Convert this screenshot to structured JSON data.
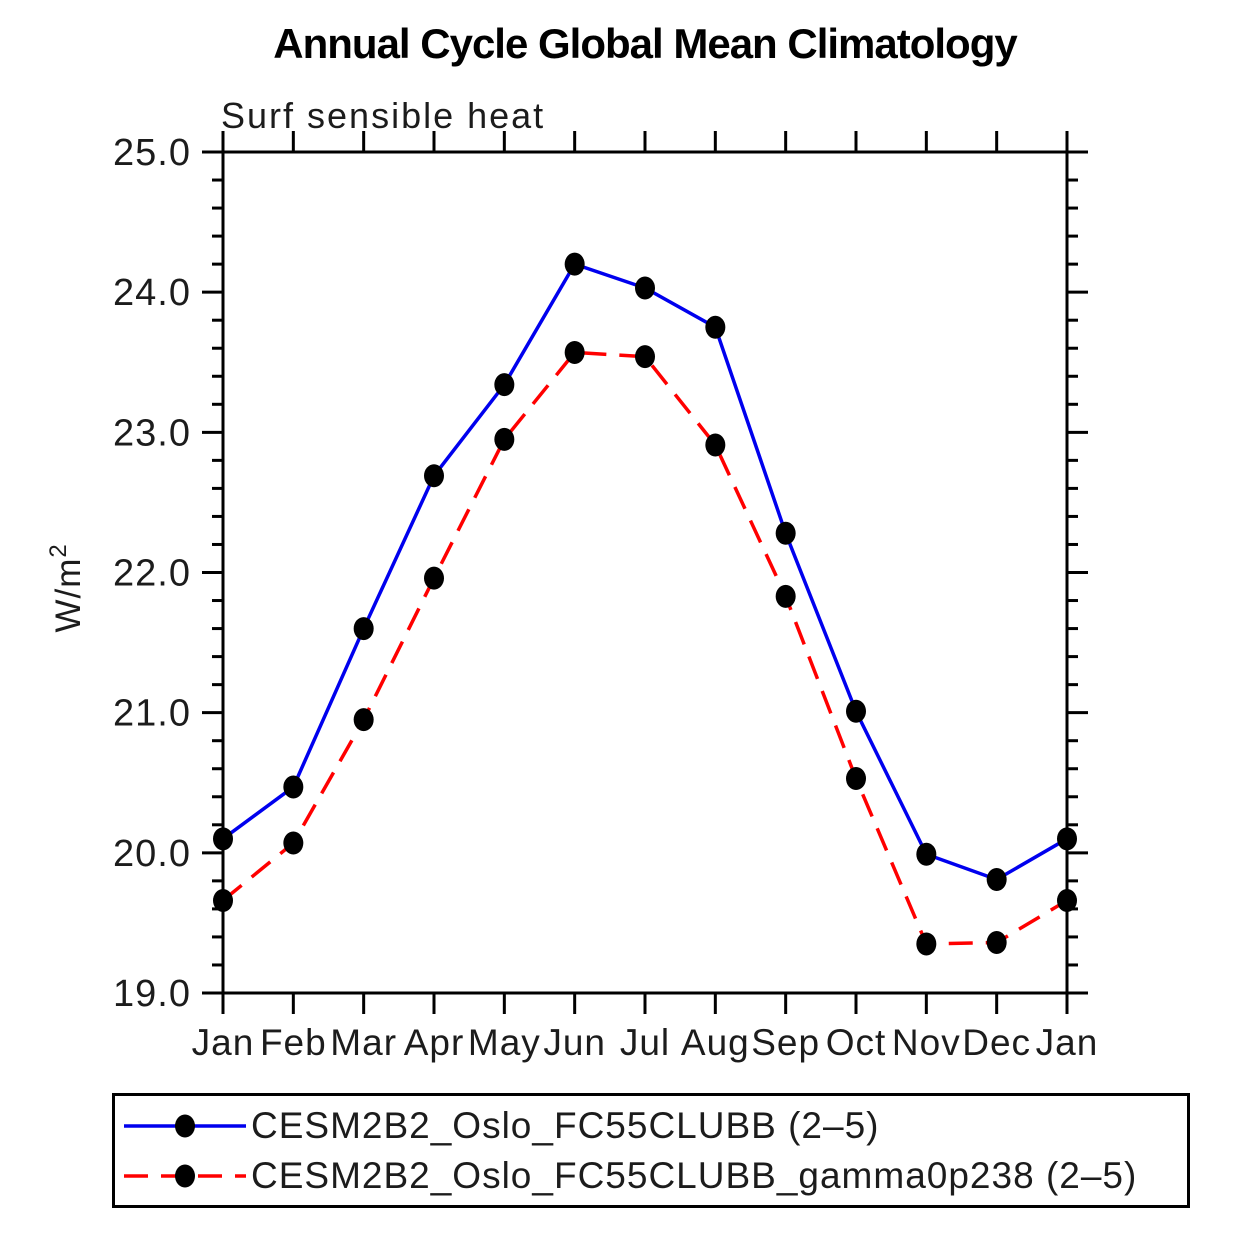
{
  "chart_data": {
    "type": "line",
    "title": "Annual Cycle Global Mean Climatology",
    "subtitle": "Surf sensible heat",
    "ylabel_base": "W/m",
    "ylabel_sup": "2",
    "categories": [
      "Jan",
      "Feb",
      "Mar",
      "Apr",
      "May",
      "Jun",
      "Jul",
      "Aug",
      "Sep",
      "Oct",
      "Nov",
      "Dec",
      "Jan"
    ],
    "series": [
      {
        "name": "CESM2B2_Oslo_FC55CLUBB (2–5)",
        "color": "#0000ee",
        "line_style": "solid",
        "marker": "filled-circle",
        "values": [
          20.1,
          20.47,
          21.6,
          22.69,
          23.34,
          24.2,
          24.03,
          23.75,
          22.28,
          21.01,
          19.99,
          19.81,
          20.1
        ]
      },
      {
        "name": "CESM2B2_Oslo_FC55CLUBB_gamma0p238 (2–5)",
        "color": "#ff0000",
        "line_style": "dashed",
        "marker": "filled-circle",
        "values": [
          19.66,
          20.07,
          20.95,
          21.96,
          22.95,
          23.57,
          23.54,
          22.91,
          21.83,
          20.53,
          19.35,
          19.36,
          19.66
        ]
      }
    ],
    "ylim": [
      19.0,
      25.0
    ],
    "ytick_major": 1.0,
    "ytick_minor": 0.2,
    "ytick_labels": [
      "19.0",
      "20.0",
      "21.0",
      "22.0",
      "23.0",
      "24.0",
      "25.0"
    ],
    "marker_color": "#000000",
    "grid": false,
    "legend_position": "bottom"
  }
}
